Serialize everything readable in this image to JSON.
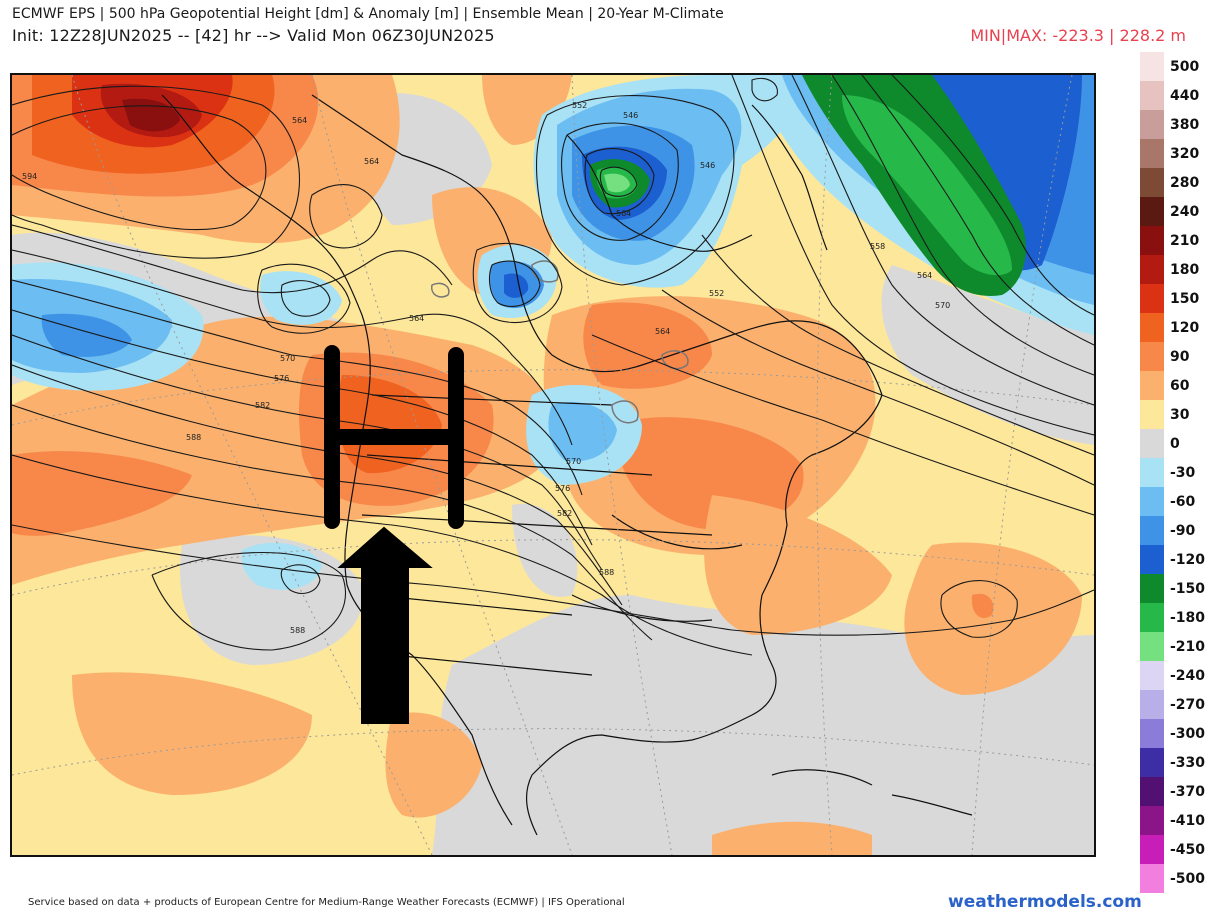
{
  "header": {
    "title": "ECMWF EPS | 500 hPa Geopotential Height [dm] & Anomaly [m] | Ensemble Mean | 20-Year M-Climate",
    "init_line": "Init: 12Z28JUN2025 -- [42] hr --> Valid Mon 06Z30JUN2025",
    "minmax": "MIN|MAX: -223.3 | 228.2 m"
  },
  "colorbar": {
    "stops": [
      {
        "label": "500",
        "color": "#f6e3e3"
      },
      {
        "label": "440",
        "color": "#e6c2c0"
      },
      {
        "label": "380",
        "color": "#c99e9a"
      },
      {
        "label": "320",
        "color": "#a8776a"
      },
      {
        "label": "280",
        "color": "#7c4a35"
      },
      {
        "label": "240",
        "color": "#5a1a12"
      },
      {
        "label": "210",
        "color": "#8a0f0f"
      },
      {
        "label": "180",
        "color": "#b21a12"
      },
      {
        "label": "150",
        "color": "#dc3214"
      },
      {
        "label": "120",
        "color": "#f0621f"
      },
      {
        "label": "90",
        "color": "#f8874a"
      },
      {
        "label": "60",
        "color": "#fbb16d"
      },
      {
        "label": "30",
        "color": "#fde79a"
      },
      {
        "label": "0",
        "color": "#d9d9d9"
      },
      {
        "label": "-30",
        "color": "#a9e2f5"
      },
      {
        "label": "-60",
        "color": "#6cbdf2"
      },
      {
        "label": "-90",
        "color": "#3f93e6"
      },
      {
        "label": "-120",
        "color": "#1c5fd0"
      },
      {
        "label": "-150",
        "color": "#0e8a2c"
      },
      {
        "label": "-180",
        "color": "#27b84a"
      },
      {
        "label": "-210",
        "color": "#75e07f"
      },
      {
        "label": "-240",
        "color": "#dcd6f4"
      },
      {
        "label": "-270",
        "color": "#b8aee8"
      },
      {
        "label": "-300",
        "color": "#8a7cd8"
      },
      {
        "label": "-330",
        "color": "#3e2ea6"
      },
      {
        "label": "-370",
        "color": "#521072"
      },
      {
        "label": "-410",
        "color": "#8a1488"
      },
      {
        "label": "-450",
        "color": "#c81eb8"
      },
      {
        "label": "-500",
        "color": "#f27fe0"
      }
    ]
  },
  "map": {
    "contour_labels": [
      "594",
      "564",
      "564",
      "552",
      "546",
      "546",
      "564",
      "552",
      "558",
      "564",
      "570",
      "570",
      "576",
      "582",
      "588",
      "564",
      "564",
      "570",
      "576",
      "582",
      "588",
      "588"
    ],
    "annotation_letter": "H",
    "annotation_arrow": "up-arrow"
  },
  "footer": {
    "credit": "Service based on data + products of European Centre for Medium-Range Weather Forecasts (ECMWF) | IFS Operational",
    "brand": "weathermodels.com"
  }
}
